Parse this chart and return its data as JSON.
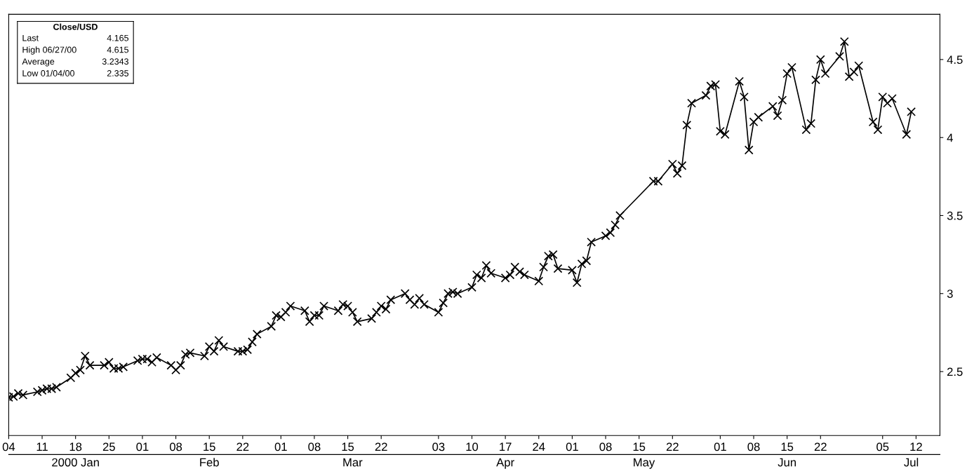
{
  "chart_data": {
    "type": "line",
    "marker": "cross",
    "line_style": "solid",
    "grid": false,
    "legend": false,
    "x": [
      "2000-01-04",
      "2000-01-05",
      "2000-01-06",
      "2000-01-07",
      "2000-01-10",
      "2000-01-11",
      "2000-01-12",
      "2000-01-13",
      "2000-01-14",
      "2000-01-17",
      "2000-01-18",
      "2000-01-19",
      "2000-01-20",
      "2000-01-21",
      "2000-01-24",
      "2000-01-25",
      "2000-01-26",
      "2000-01-27",
      "2000-01-28",
      "2000-01-31",
      "2000-02-01",
      "2000-02-02",
      "2000-02-03",
      "2000-02-04",
      "2000-02-07",
      "2000-02-08",
      "2000-02-09",
      "2000-02-10",
      "2000-02-11",
      "2000-02-14",
      "2000-02-15",
      "2000-02-16",
      "2000-02-17",
      "2000-02-18",
      "2000-02-21",
      "2000-02-22",
      "2000-02-23",
      "2000-02-24",
      "2000-02-25",
      "2000-02-28",
      "2000-02-29",
      "2000-03-01",
      "2000-03-02",
      "2000-03-03",
      "2000-03-06",
      "2000-03-07",
      "2000-03-08",
      "2000-03-09",
      "2000-03-10",
      "2000-03-13",
      "2000-03-14",
      "2000-03-15",
      "2000-03-16",
      "2000-03-17",
      "2000-03-20",
      "2000-03-21",
      "2000-03-22",
      "2000-03-23",
      "2000-03-24",
      "2000-03-27",
      "2000-03-28",
      "2000-03-29",
      "2000-03-30",
      "2000-03-31",
      "2000-04-03",
      "2000-04-04",
      "2000-04-05",
      "2000-04-06",
      "2000-04-07",
      "2000-04-10",
      "2000-04-11",
      "2000-04-12",
      "2000-04-13",
      "2000-04-14",
      "2000-04-17",
      "2000-04-18",
      "2000-04-19",
      "2000-04-20",
      "2000-04-21",
      "2000-04-24",
      "2000-04-25",
      "2000-04-26",
      "2000-04-27",
      "2000-04-28",
      "2000-05-01",
      "2000-05-02",
      "2000-05-03",
      "2000-05-04",
      "2000-05-05",
      "2000-05-08",
      "2000-05-09",
      "2000-05-10",
      "2000-05-11",
      "2000-05-18",
      "2000-05-19",
      "2000-05-22",
      "2000-05-23",
      "2000-05-24",
      "2000-05-25",
      "2000-05-26",
      "2000-05-29",
      "2000-05-30",
      "2000-05-31",
      "2000-06-01",
      "2000-06-02",
      "2000-06-05",
      "2000-06-06",
      "2000-06-07",
      "2000-06-08",
      "2000-06-09",
      "2000-06-12",
      "2000-06-13",
      "2000-06-14",
      "2000-06-15",
      "2000-06-16",
      "2000-06-19",
      "2000-06-20",
      "2000-06-21",
      "2000-06-22",
      "2000-06-23",
      "2000-06-26",
      "2000-06-27",
      "2000-06-28",
      "2000-06-29",
      "2000-06-30",
      "2000-07-03",
      "2000-07-04",
      "2000-07-05",
      "2000-07-06",
      "2000-07-07",
      "2000-07-10",
      "2000-07-11"
    ],
    "series": [
      {
        "color": "#000000",
        "values": [
          2.335,
          2.34,
          2.36,
          2.35,
          2.37,
          2.38,
          2.39,
          2.39,
          2.4,
          2.46,
          2.49,
          2.51,
          2.6,
          2.54,
          2.54,
          2.56,
          2.52,
          2.52,
          2.53,
          2.57,
          2.58,
          2.58,
          2.56,
          2.59,
          2.54,
          2.51,
          2.54,
          2.61,
          2.62,
          2.6,
          2.66,
          2.63,
          2.7,
          2.66,
          2.63,
          2.63,
          2.64,
          2.69,
          2.74,
          2.79,
          2.86,
          2.85,
          2.88,
          2.92,
          2.89,
          2.82,
          2.86,
          2.86,
          2.92,
          2.89,
          2.93,
          2.92,
          2.88,
          2.82,
          2.84,
          2.88,
          2.92,
          2.9,
          2.96,
          3.0,
          2.96,
          2.93,
          2.97,
          2.93,
          2.88,
          2.94,
          3.0,
          3.01,
          3.0,
          3.04,
          3.12,
          3.1,
          3.18,
          3.13,
          3.1,
          3.12,
          3.17,
          3.14,
          3.12,
          3.08,
          3.17,
          3.24,
          3.25,
          3.16,
          3.15,
          3.07,
          3.19,
          3.21,
          3.33,
          3.37,
          3.39,
          3.44,
          3.5,
          3.72,
          3.72,
          3.83,
          3.77,
          3.82,
          4.08,
          4.22,
          4.27,
          4.33,
          4.34,
          4.04,
          4.02,
          4.36,
          4.26,
          3.92,
          4.1,
          4.13,
          4.2,
          4.14,
          4.24,
          4.41,
          4.45,
          4.05,
          4.09,
          4.37,
          4.5,
          4.41,
          4.52,
          4.615,
          4.39,
          4.42,
          4.46,
          4.1,
          4.05,
          4.26,
          4.22,
          4.25,
          4.02,
          4.165
        ]
      }
    ],
    "xlim": [
      "2000-01-04",
      "2000-07-17"
    ],
    "xticks": [
      {
        "value": "2000-01-04",
        "label": "04"
      },
      {
        "value": "2000-01-11",
        "label": "11"
      },
      {
        "value": "2000-01-18",
        "label": "18"
      },
      {
        "value": "2000-01-25",
        "label": "25"
      },
      {
        "value": "2000-02-01",
        "label": "01"
      },
      {
        "value": "2000-02-08",
        "label": "08"
      },
      {
        "value": "2000-02-15",
        "label": "15"
      },
      {
        "value": "2000-02-22",
        "label": "22"
      },
      {
        "value": "2000-03-01",
        "label": "01"
      },
      {
        "value": "2000-03-08",
        "label": "08"
      },
      {
        "value": "2000-03-15",
        "label": "15"
      },
      {
        "value": "2000-03-22",
        "label": "22"
      },
      {
        "value": "2000-04-03",
        "label": "03"
      },
      {
        "value": "2000-04-10",
        "label": "10"
      },
      {
        "value": "2000-04-17",
        "label": "17"
      },
      {
        "value": "2000-04-24",
        "label": "24"
      },
      {
        "value": "2000-05-01",
        "label": "01"
      },
      {
        "value": "2000-05-08",
        "label": "08"
      },
      {
        "value": "2000-05-15",
        "label": "15"
      },
      {
        "value": "2000-05-22",
        "label": "22"
      },
      {
        "value": "2000-06-01",
        "label": "01"
      },
      {
        "value": "2000-06-08",
        "label": "08"
      },
      {
        "value": "2000-06-15",
        "label": "15"
      },
      {
        "value": "2000-06-22",
        "label": "22"
      },
      {
        "value": "2000-07-05",
        "label": "05"
      },
      {
        "value": "2000-07-12",
        "label": "12"
      }
    ],
    "x2lim": [
      "2000-01-04",
      "2000-07-17"
    ],
    "x2ticks": [
      {
        "value": "2000-01-18",
        "label": "2000 Jan"
      },
      {
        "value": "2000-02-15",
        "label": "Feb"
      },
      {
        "value": "2000-03-16",
        "label": "Mar"
      },
      {
        "value": "2000-04-17",
        "label": "Apr"
      },
      {
        "value": "2000-05-16",
        "label": "May"
      },
      {
        "value": "2000-06-15",
        "label": "Jun"
      },
      {
        "value": "2000-07-11",
        "label": "Jul"
      }
    ],
    "ylim": [
      2.09,
      4.79
    ],
    "yticks": [
      2.5,
      3,
      3.5,
      4,
      4.5
    ],
    "annotations": [
      "Close/USD",
      "Last",
      "4.165",
      "High 06/27/00",
      "4.615",
      "Average",
      "3.2343",
      "Low 01/04/00",
      "2.335"
    ]
  }
}
